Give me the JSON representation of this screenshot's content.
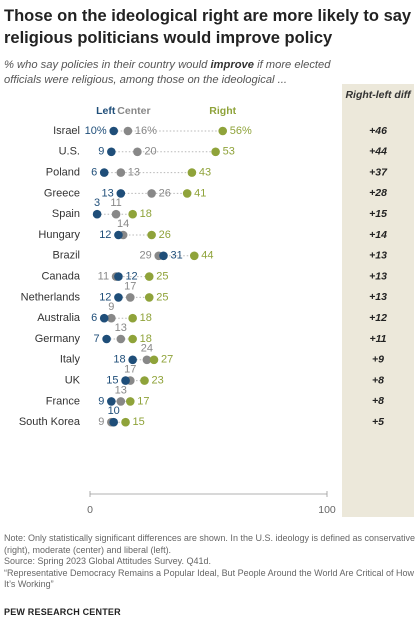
{
  "title": "Those on the ideological right are more likely to say religious politicians would improve policy",
  "subtitle": {
    "before": "% who say policies in their country would ",
    "emphasis": "improve",
    "after": " if more elected officials were religious, among those on the ideological ..."
  },
  "diff_header": "Right-left diff",
  "colors": {
    "left": "#1f4e79",
    "center": "#888888",
    "right": "#8fa33a",
    "text": "#333333",
    "panel": "#ece8da"
  },
  "chart_data": {
    "type": "scatter",
    "title": "Those on the ideological right are more likely to say religious politicians would improve policy",
    "xlim": [
      0,
      100
    ],
    "x_ticks": [
      "0",
      "100"
    ],
    "legend": [
      "Left",
      "Center",
      "Right"
    ],
    "legend_placement": "top",
    "categories": [
      "Israel",
      "U.S.",
      "Poland",
      "Greece",
      "Spain",
      "Hungary",
      "Brazil",
      "Canada",
      "Netherlands",
      "Australia",
      "Germany",
      "Italy",
      "UK",
      "France",
      "South Korea"
    ],
    "series": [
      {
        "name": "Left",
        "values": [
          10,
          9,
          6,
          13,
          3,
          12,
          31,
          12,
          12,
          6,
          7,
          18,
          15,
          9,
          10
        ]
      },
      {
        "name": "Center",
        "values": [
          16,
          20,
          13,
          26,
          11,
          14,
          29,
          11,
          17,
          9,
          13,
          24,
          17,
          13,
          9
        ]
      },
      {
        "name": "Right",
        "values": [
          56,
          53,
          43,
          41,
          18,
          26,
          44,
          25,
          25,
          18,
          18,
          27,
          23,
          17,
          15
        ]
      }
    ],
    "diff": [
      "+46",
      "+44",
      "+37",
      "+28",
      "+15",
      "+14",
      "+13",
      "+13",
      "+13",
      "+12",
      "+11",
      "+9",
      "+8",
      "+8",
      "+5"
    ],
    "first_row_labels": {
      "left": "10%",
      "center": "16%",
      "right": "56%"
    }
  },
  "footer": {
    "note": "Note: Only statistically significant differences are shown. In the U.S. ideology is defined as conservative (right), moderate (center) and liberal (left).",
    "source": "Source: Spring 2023 Global Attitudes Survey. Q41d.",
    "report": "“Representative Democracy Remains a Popular Ideal, But People Around the World Are Critical of How It’s Working”"
  },
  "brand": "PEW RESEARCH CENTER"
}
